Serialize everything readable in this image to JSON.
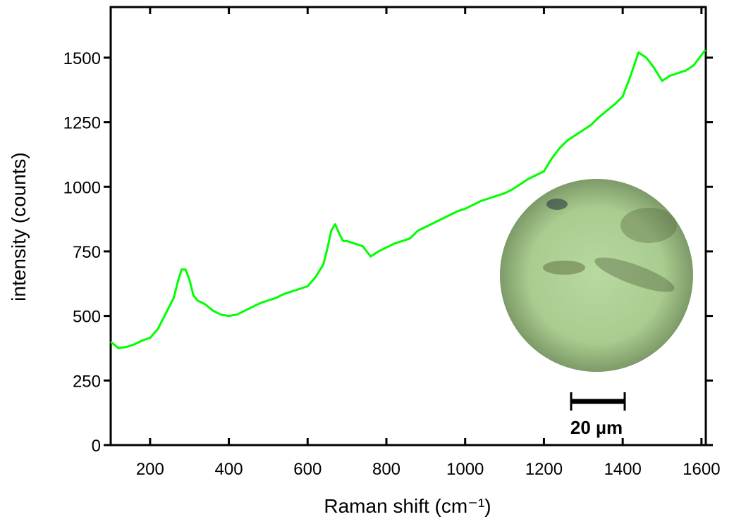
{
  "chart_data": {
    "type": "line",
    "x_label": "Raman shift (cm⁻¹)",
    "y_label": "intensity (counts)",
    "inset_scale_label": "20 µm",
    "color": "#00ff00",
    "x": [
      100,
      120,
      140,
      160,
      180,
      200,
      220,
      240,
      260,
      270,
      280,
      290,
      300,
      310,
      320,
      340,
      360,
      380,
      400,
      420,
      440,
      460,
      480,
      500,
      520,
      540,
      560,
      580,
      600,
      620,
      640,
      650,
      660,
      670,
      680,
      690,
      700,
      720,
      740,
      760,
      780,
      800,
      820,
      840,
      860,
      880,
      900,
      920,
      940,
      960,
      980,
      1000,
      1020,
      1040,
      1060,
      1080,
      1100,
      1120,
      1140,
      1160,
      1180,
      1200,
      1220,
      1240,
      1260,
      1280,
      1300,
      1320,
      1340,
      1360,
      1380,
      1400,
      1420,
      1440,
      1460,
      1480,
      1500,
      1520,
      1540,
      1560,
      1580,
      1600,
      1610
    ],
    "values": [
      400,
      375,
      380,
      390,
      405,
      415,
      450,
      510,
      570,
      630,
      680,
      680,
      640,
      580,
      560,
      545,
      520,
      505,
      500,
      505,
      520,
      535,
      550,
      560,
      570,
      585,
      595,
      605,
      615,
      650,
      700,
      760,
      830,
      855,
      820,
      790,
      790,
      780,
      770,
      730,
      750,
      765,
      780,
      790,
      800,
      830,
      845,
      860,
      875,
      890,
      905,
      915,
      930,
      945,
      955,
      965,
      975,
      990,
      1010,
      1030,
      1045,
      1060,
      1110,
      1150,
      1180,
      1200,
      1220,
      1240,
      1270,
      1295,
      1320,
      1350,
      1430,
      1520,
      1500,
      1460,
      1410,
      1430,
      1440,
      1450,
      1470,
      1510,
      1530
    ],
    "xlim": [
      100,
      1611
    ],
    "ylim": [
      0,
      1696
    ],
    "xticks": [
      200,
      400,
      600,
      800,
      1000,
      1200,
      1400,
      1600
    ],
    "yticks": [
      0,
      250,
      500,
      750,
      1000,
      1250,
      1500
    ]
  }
}
